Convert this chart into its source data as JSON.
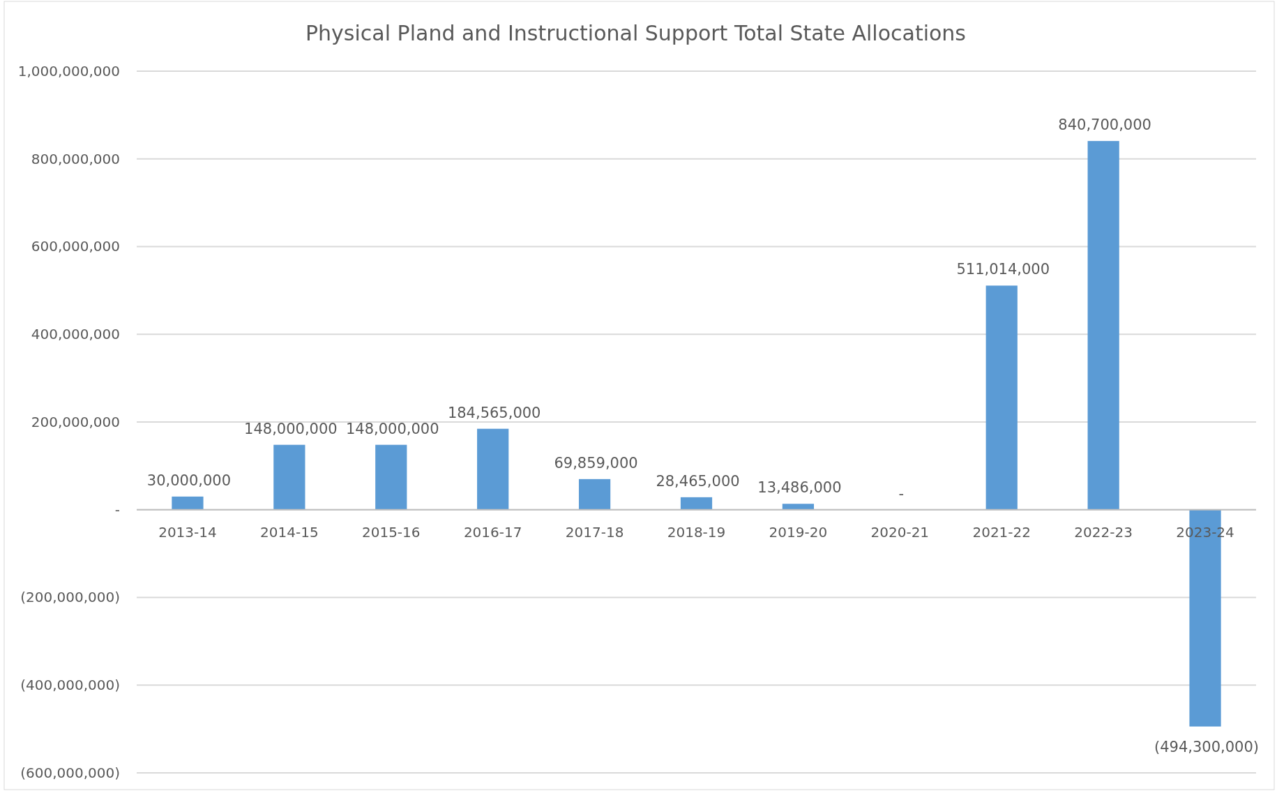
{
  "chart_data": {
    "type": "bar",
    "title": "Physical Pland and Instructional Support Total State Allocations",
    "categories": [
      "2013-14",
      "2014-15",
      "2015-16",
      "2016-17",
      "2017-18",
      "2018-19",
      "2019-20",
      "2020-21",
      "2021-22",
      "2022-23",
      "2023-24"
    ],
    "values": [
      30000000,
      148000000,
      148000000,
      184565000,
      69859000,
      28465000,
      13486000,
      0,
      511014000,
      840700000,
      -494300000
    ],
    "value_labels": [
      "30,000,000",
      "148,000,000",
      "148,000,000",
      "184,565,000",
      "69,859,000",
      "28,465,000",
      "13,486,000",
      "-",
      "511,014,000",
      "840,700,000",
      "(494,300,000)"
    ],
    "color": "#5b9bd5",
    "ylim": [
      -600000000,
      1000000000
    ],
    "yticks": [
      {
        "value": -600000000,
        "label": "(600,000,000)"
      },
      {
        "value": -400000000,
        "label": "(400,000,000)"
      },
      {
        "value": -200000000,
        "label": "(200,000,000)"
      },
      {
        "value": 0,
        "label": "-"
      },
      {
        "value": 200000000,
        "label": "200,000,000"
      },
      {
        "value": 400000000,
        "label": "400,000,000"
      },
      {
        "value": 600000000,
        "label": "600,000,000"
      },
      {
        "value": 800000000,
        "label": "800,000,000"
      },
      {
        "value": 1000000000,
        "label": "1,000,000,000"
      }
    ],
    "grid": "y"
  }
}
